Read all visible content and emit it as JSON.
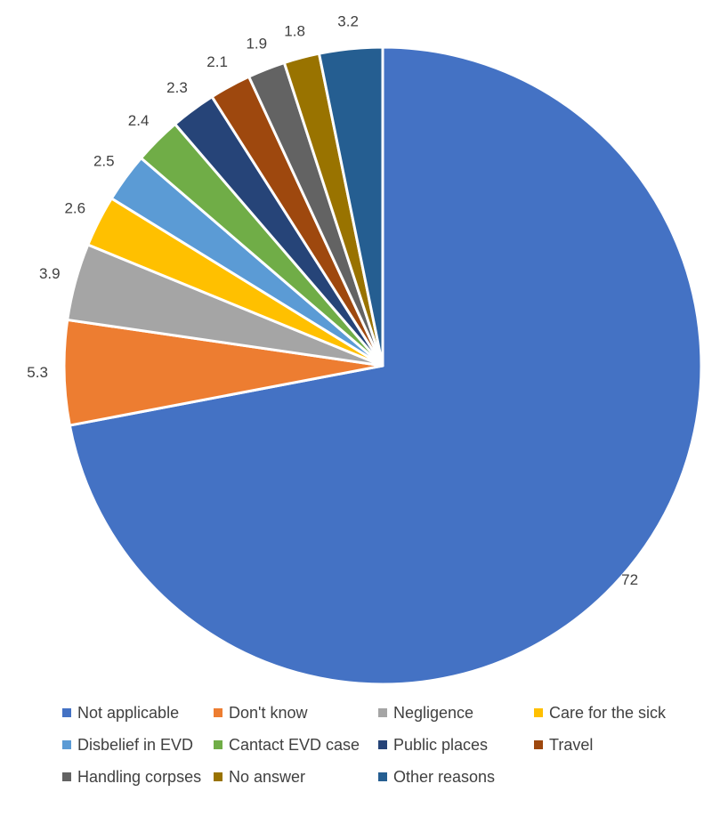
{
  "chart_data": {
    "type": "pie",
    "start_angle_deg": 0,
    "direction": "clockwise",
    "slices": [
      {
        "name": "Not applicable",
        "value": 72,
        "label": "72",
        "color": "#4472C4"
      },
      {
        "name": "Don't know",
        "value": 5.3,
        "label": "5.3",
        "color": "#ED7D31"
      },
      {
        "name": "Negligence",
        "value": 3.9,
        "label": "3.9",
        "color": "#A5A5A5"
      },
      {
        "name": "Care for the sick",
        "value": 2.6,
        "label": "2.6",
        "color": "#FFC000"
      },
      {
        "name": "Disbelief in EVD",
        "value": 2.5,
        "label": "2.5",
        "color": "#5B9BD5"
      },
      {
        "name": "Cantact EVD case",
        "value": 2.4,
        "label": "2.4",
        "color": "#70AD47"
      },
      {
        "name": "Public places",
        "value": 2.3,
        "label": "2.3",
        "color": "#264478"
      },
      {
        "name": "Travel",
        "value": 2.1,
        "label": "2.1",
        "color": "#9E480E"
      },
      {
        "name": "Handling corpses",
        "value": 1.9,
        "label": "1.9",
        "color": "#636363"
      },
      {
        "name": "No answer",
        "value": 1.8,
        "label": "1.8",
        "color": "#997300"
      },
      {
        "name": "Other reasons",
        "value": 3.2,
        "label": "3.2",
        "color": "#255E91"
      }
    ],
    "legend_position": "bottom",
    "legend_order": [
      "Not applicable",
      "Don't know",
      "Negligence",
      "Care for the sick",
      "Disbelief in EVD",
      "Cantact EVD case",
      "Public places",
      "Travel",
      "Handling corpses",
      "No answer",
      "Other reasons"
    ]
  }
}
